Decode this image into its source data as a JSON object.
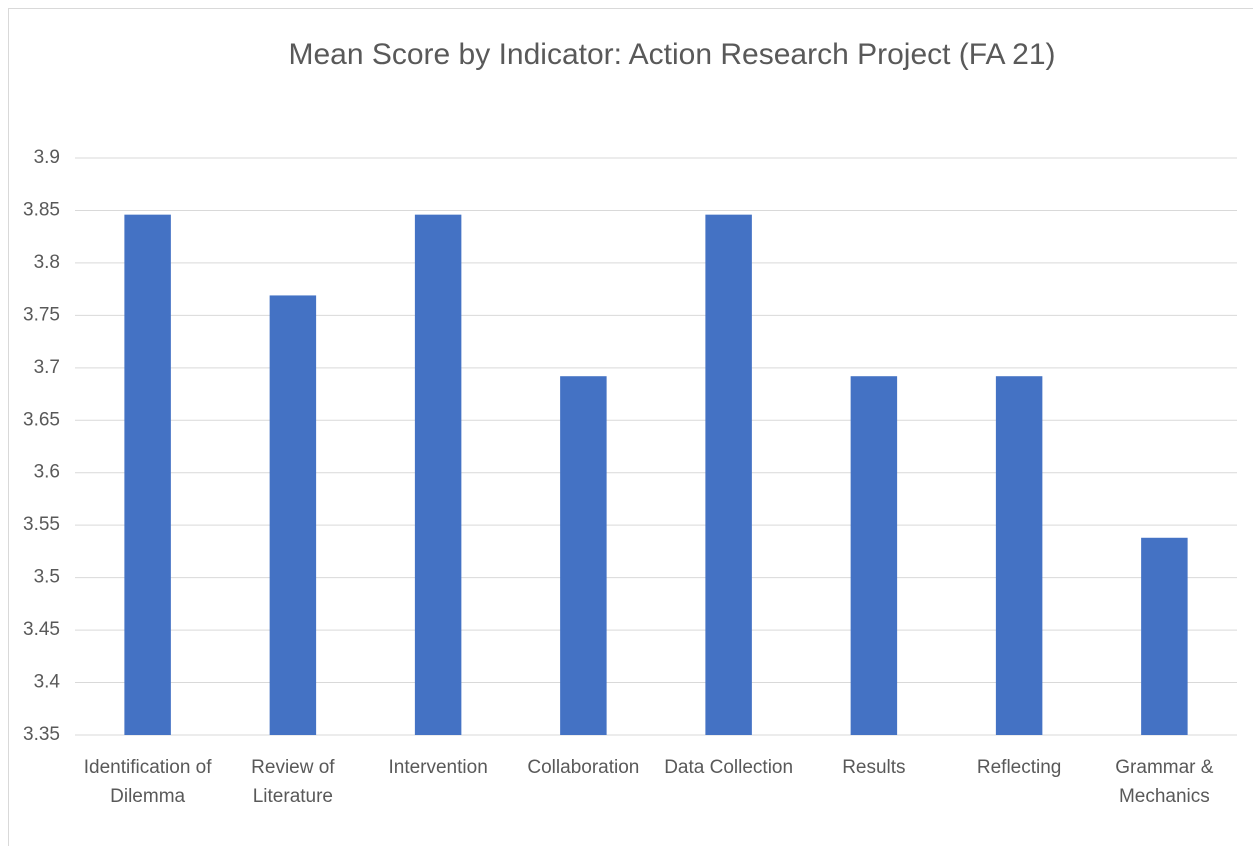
{
  "chart_data": {
    "type": "bar",
    "title": "Mean Score by Indicator: Action Research Project (FA 21)",
    "categories": [
      "Identification of Dilemma",
      "Review of Literature",
      "Intervention",
      "Collaboration",
      "Data Collection",
      "Results",
      "Reflecting",
      "Grammar & Mechanics"
    ],
    "values": [
      3.846,
      3.769,
      3.846,
      3.692,
      3.846,
      3.692,
      3.692,
      3.538
    ],
    "color": "#4472c4",
    "ylim": [
      3.35,
      3.9
    ],
    "yticks": [
      3.35,
      3.4,
      3.45,
      3.5,
      3.55,
      3.6,
      3.65,
      3.7,
      3.75,
      3.8,
      3.85,
      3.9
    ],
    "grid": true
  }
}
